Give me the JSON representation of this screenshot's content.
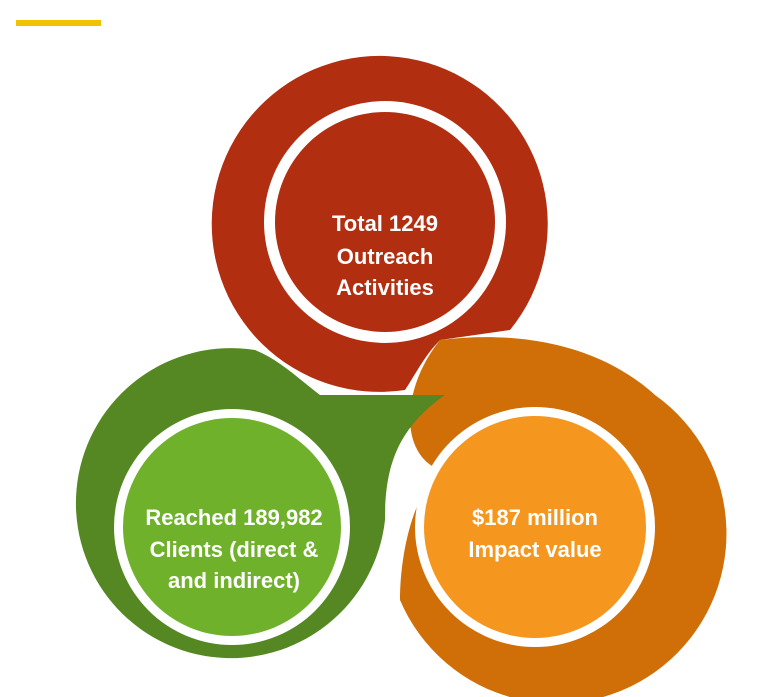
{
  "colors": {
    "accent": "#F2C200",
    "red_ring": "#B22E10",
    "red_inner": "#B22E10",
    "green_ring": "#558822",
    "green_inner": "#6FB12B",
    "orange_ring": "#D06F07",
    "orange_inner": "#F5961F",
    "separator": "#FFFFFF"
  },
  "circles": {
    "outreach": {
      "line1": "Total 1249",
      "line2": "Outreach",
      "line3": "Activities"
    },
    "clients": {
      "line1": "Reached 189,982",
      "line2": "Clients (direct &",
      "line3": "and indirect)"
    },
    "impact": {
      "line1": "$187 million",
      "line2": "Impact value"
    }
  }
}
